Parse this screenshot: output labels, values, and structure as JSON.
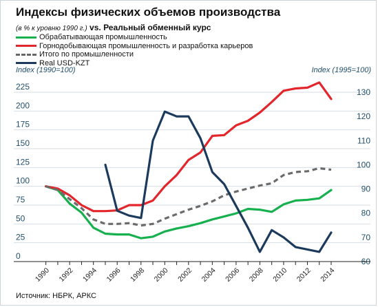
{
  "header": {
    "title": "Индексы физических объемов производства",
    "subtitle_prefix": "(в % к уровню 1990 г.)",
    "subtitle_main": " vs. Реальный обменный курс"
  },
  "footer": {
    "source": "Источник: НБРК, АРКС"
  },
  "colors": {
    "manufacturing": "#16b14e",
    "mining": "#e2262b",
    "total": "#6b6b6b",
    "usd_kzt": "#1b3a5c",
    "grid": "#d6dde2",
    "axis_text": "#1f4e6b"
  },
  "chart_data": {
    "type": "line",
    "grid": true,
    "legend_position": "top-left",
    "left_axis": {
      "caption": "Index (1990=100)",
      "ylim": [
        0,
        225
      ],
      "ticks": [
        0,
        25,
        50,
        75,
        100,
        125,
        150,
        175,
        200,
        225
      ]
    },
    "right_axis": {
      "caption": "Index (1995=100)",
      "ylim": [
        60,
        130
      ],
      "ticks": [
        60,
        70,
        80,
        90,
        100,
        110,
        120,
        130
      ]
    },
    "x_ticks": [
      1990,
      1992,
      1994,
      1996,
      1998,
      2000,
      2002,
      2004,
      2006,
      2008,
      2010,
      2012,
      2014
    ],
    "series": [
      {
        "key": "manufacturing",
        "name": "Обрабатывающая  промышленность",
        "axis": "left",
        "style": "solid",
        "x": [
          1990,
          1991,
          1992,
          1993,
          1994,
          1995,
          1996,
          1997,
          1998,
          1999,
          2000,
          2001,
          2002,
          2003,
          2004,
          2005,
          2006,
          2007,
          2008,
          2009,
          2010,
          2011,
          2012,
          2013,
          2014
        ],
        "y": [
          100,
          95,
          77,
          65,
          45,
          37,
          36,
          36,
          31,
          33,
          40,
          44,
          47,
          51,
          56,
          60,
          64,
          70,
          69,
          66,
          76,
          81,
          82,
          84,
          95
        ]
      },
      {
        "key": "mining",
        "name": "Горнодобывающая  промышленность и разработка карьеров",
        "axis": "left",
        "style": "solid",
        "x": [
          1990,
          1991,
          1992,
          1993,
          1994,
          1995,
          1996,
          1997,
          1998,
          1999,
          2000,
          2001,
          2002,
          2003,
          2004,
          2005,
          2006,
          2007,
          2008,
          2009,
          2010,
          2011,
          2012,
          2013,
          2014
        ],
        "y": [
          100,
          97,
          88,
          75,
          67,
          67,
          68,
          75,
          75,
          81,
          100,
          115,
          135,
          145,
          167,
          168,
          181,
          187,
          198,
          212,
          227,
          230,
          231,
          238,
          216
        ]
      },
      {
        "key": "total",
        "name": "Итого по промышленности",
        "axis": "left",
        "style": "dashed",
        "x": [
          1990,
          1991,
          1992,
          1993,
          1994,
          1995,
          1996,
          1997,
          1998,
          1999,
          2000,
          2001,
          2002,
          2003,
          2004,
          2005,
          2006,
          2007,
          2008,
          2009,
          2010,
          2011,
          2012,
          2013,
          2014
        ],
        "y": [
          100,
          95,
          83,
          71,
          56,
          50,
          50,
          51,
          48,
          50,
          57,
          63,
          69,
          74,
          80,
          88,
          93,
          97,
          101,
          104,
          115,
          119,
          120,
          124,
          122
        ]
      },
      {
        "key": "usd_kzt",
        "name": "Real USD-KZT",
        "axis": "right",
        "style": "solid",
        "x": [
          1995,
          1996,
          1997,
          1998,
          1999,
          2000,
          2001,
          2002,
          2003,
          2004,
          2005,
          2006,
          2007,
          2008,
          2009,
          2010,
          2011,
          2012,
          2013,
          2014
        ],
        "y": [
          100,
          81,
          79,
          78,
          110,
          122,
          120,
          120,
          111,
          97,
          92,
          83,
          74,
          64,
          73,
          70,
          66,
          65,
          64,
          72
        ]
      }
    ]
  }
}
